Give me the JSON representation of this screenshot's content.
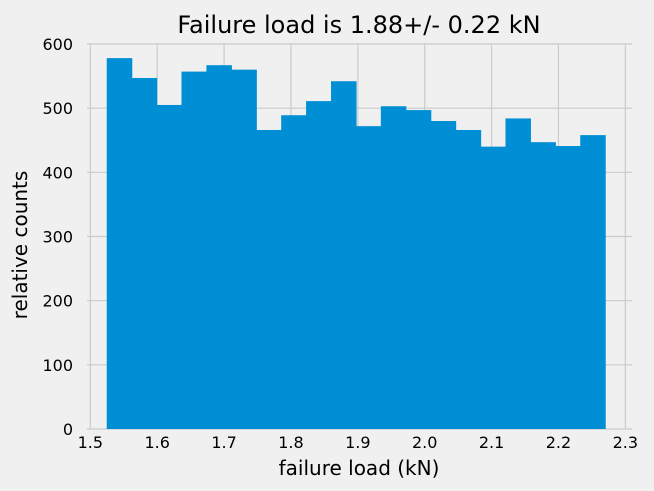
{
  "chart_data": {
    "type": "bar",
    "title": "Failure load is 1.88+/- 0.22 kN",
    "xlabel": "failure load (kN)",
    "ylabel": "relative counts",
    "xlim": [
      1.495,
      2.31
    ],
    "ylim": [
      0,
      600
    ],
    "xticks": [
      "1.5",
      "1.6",
      "1.7",
      "1.8",
      "1.9",
      "2.0",
      "2.1",
      "2.2",
      "2.3"
    ],
    "yticks": [
      "0",
      "100",
      "200",
      "300",
      "400",
      "500",
      "600"
    ],
    "grid": true,
    "color": "#008fd5",
    "bin_edges": [
      1.5245,
      1.5618,
      1.599,
      1.6363,
      1.6736,
      1.7108,
      1.7481,
      1.7854,
      1.8226,
      1.8599,
      1.8972,
      1.9344,
      1.9717,
      2.009,
      2.0462,
      2.0835,
      2.1208,
      2.158,
      2.1953,
      2.2326,
      2.2698
    ],
    "values": [
      578,
      547,
      505,
      557,
      567,
      560,
      466,
      489,
      511,
      542,
      472,
      503,
      497,
      480,
      466,
      440,
      484,
      447,
      441,
      458
    ]
  }
}
